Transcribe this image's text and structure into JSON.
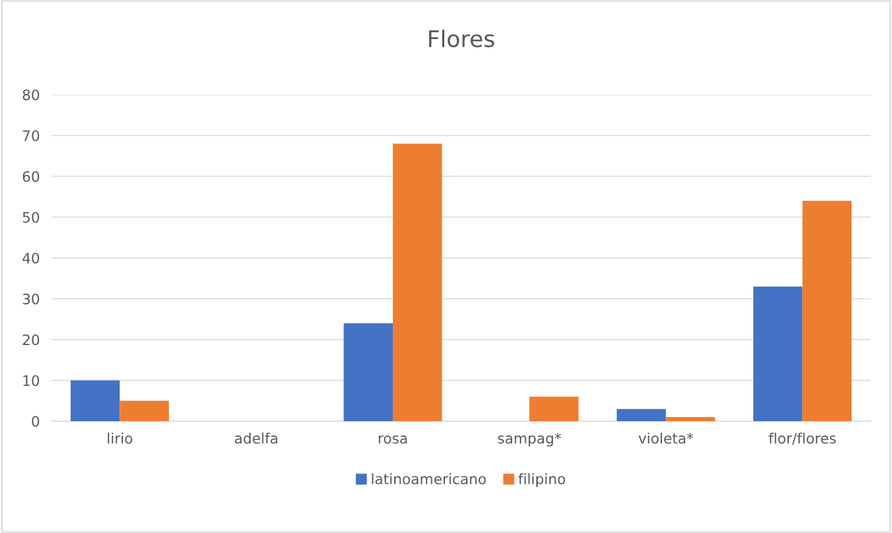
{
  "chart_data": {
    "type": "bar",
    "title": "Flores",
    "categories": [
      "lirio",
      "adelfa",
      "rosa",
      "sampag*",
      "violeta*",
      "flor/flores"
    ],
    "series": [
      {
        "name": "latinoamericano",
        "color": "#4472c4",
        "values": [
          10,
          0,
          24,
          0,
          3,
          33
        ]
      },
      {
        "name": "filipino",
        "color": "#ed7d31",
        "values": [
          5,
          0,
          68,
          6,
          1,
          54
        ]
      }
    ],
    "ylim": [
      0,
      80
    ],
    "yticks": [
      0,
      10,
      20,
      30,
      40,
      50,
      60,
      70,
      80
    ],
    "grid": "y",
    "legend": "bottom"
  }
}
